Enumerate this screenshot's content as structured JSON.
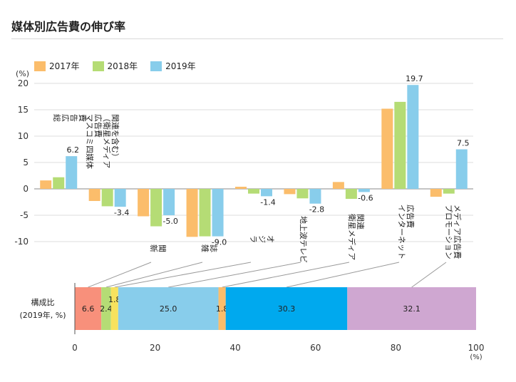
{
  "title": "媒体別広告費の伸び率",
  "colors": {
    "2017": "#fbbd6b",
    "2018": "#b5dc75",
    "2019": "#88cdeb"
  },
  "chart_data": [
    {
      "type": "bar",
      "title": "媒体別広告費の伸び率",
      "ylabel": "(%)",
      "ylim": [
        -10,
        20
      ],
      "yticks": [
        20,
        15,
        10,
        5,
        0,
        -5,
        -10
      ],
      "legend": [
        "2017年",
        "2018年",
        "2019年"
      ],
      "categories": [
        "総広告費",
        "マスコミ四媒体広告費（衛星メディア関連を含む）",
        "新聞",
        "雑誌",
        "ラジオ",
        "地上波テレビ",
        "衛星メディア関連",
        "インターネット広告費",
        "プロモーションメディア広告費"
      ],
      "series": [
        {
          "name": "2017年",
          "values": [
            1.6,
            -2.3,
            -5.2,
            -9.1,
            0.4,
            -1.0,
            1.3,
            15.2,
            -1.5
          ]
        },
        {
          "name": "2018年",
          "values": [
            2.2,
            -3.3,
            -7.1,
            -9.0,
            -0.9,
            -1.8,
            -1.9,
            16.5,
            -0.9
          ]
        },
        {
          "name": "2019年",
          "values": [
            6.2,
            -3.4,
            -5.0,
            -9.0,
            -1.4,
            -2.8,
            -0.6,
            19.7,
            7.5
          ]
        }
      ],
      "data_labels": [
        "6.2",
        "-3.4",
        "-5.0",
        "-9.0",
        "-1.4",
        "-2.8",
        "-0.6",
        "19.7",
        "7.5"
      ],
      "category_labels": [
        {
          "lines": [
            "総",
            "広",
            "告",
            "費"
          ]
        },
        {
          "lines": [
            "マスコミ四媒体",
            "広告費",
            "（衛星メディア",
            "関連を含む）"
          ]
        },
        {
          "lines": [
            "新",
            "聞"
          ]
        },
        {
          "lines": [
            "雑",
            "誌"
          ]
        },
        {
          "lines": [
            "ラ",
            "ジ",
            "オ"
          ]
        },
        {
          "lines": [
            "地上波テレビ"
          ]
        },
        {
          "lines": [
            "衛星メディア",
            "関連"
          ]
        },
        {
          "lines": [
            "インターネット",
            "広告費"
          ]
        },
        {
          "lines": [
            "プロモーション",
            "メディア広告費"
          ]
        }
      ],
      "grid": true
    },
    {
      "type": "bar",
      "orientation": "horizontal-stacked",
      "ylabel": "構成比",
      "ylabel2": "(2019年, %)",
      "xlim": [
        0,
        100
      ],
      "xticks": [
        0,
        20,
        40,
        60,
        80,
        100
      ],
      "xunit": "(%)",
      "segments": [
        {
          "label": "6.6",
          "value": 6.6,
          "color": "#f8907b"
        },
        {
          "label": "2.4",
          "value": 2.4,
          "color": "#b5dc75"
        },
        {
          "label": "1.8",
          "value": 1.8,
          "color": "#f7e25e"
        },
        {
          "label": "25.0",
          "value": 25.0,
          "color": "#88cdeb"
        },
        {
          "label": "1.8",
          "value": 1.8,
          "color": "#fbbd6b"
        },
        {
          "label": "30.3",
          "value": 30.3,
          "color": "#00a9ee"
        },
        {
          "label": "32.1",
          "value": 32.1,
          "color": "#cfa7d1"
        }
      ]
    }
  ]
}
